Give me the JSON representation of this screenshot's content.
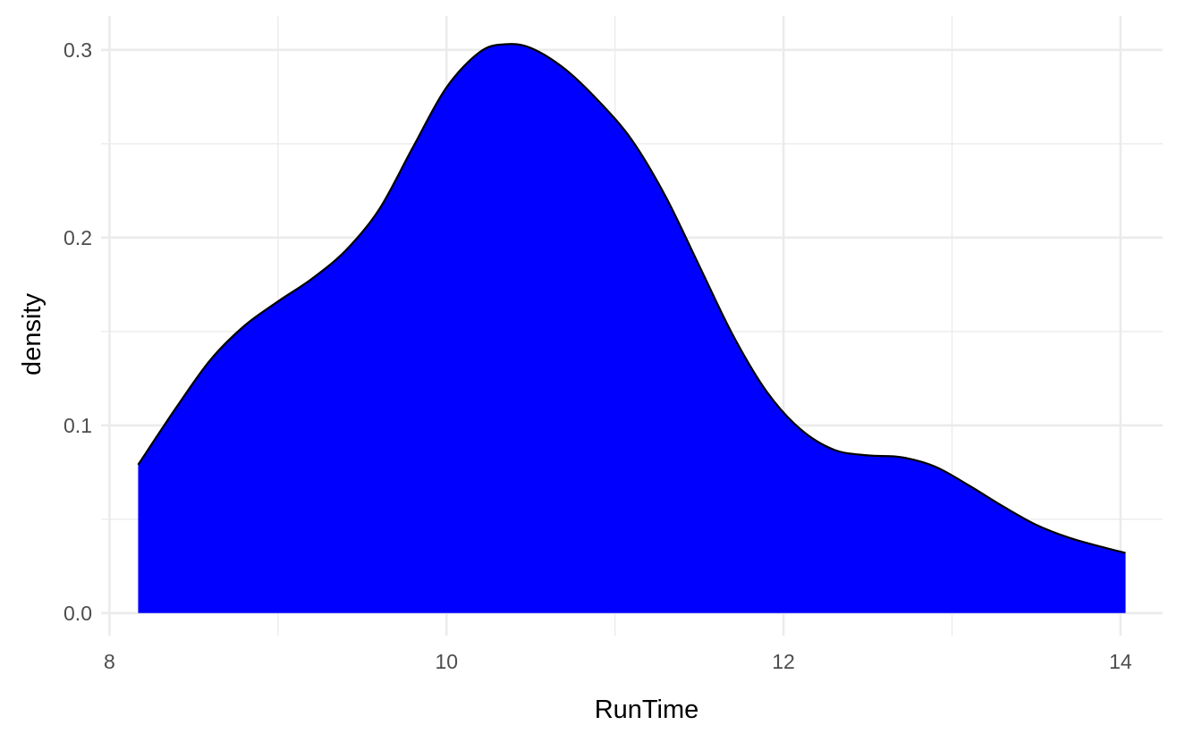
{
  "chart_data": {
    "type": "area",
    "subtype": "density",
    "title": "",
    "xlabel": "RunTime",
    "ylabel": "density",
    "xlim": [
      7.95,
      14.25
    ],
    "ylim": [
      -0.012,
      0.318
    ],
    "x_ticks": [
      {
        "value": 8,
        "label": "8"
      },
      {
        "value": 10,
        "label": "10"
      },
      {
        "value": 12,
        "label": "12"
      },
      {
        "value": 14,
        "label": "14"
      }
    ],
    "x_minor": [
      9,
      11,
      13
    ],
    "y_ticks": [
      {
        "value": 0.0,
        "label": "0.0"
      },
      {
        "value": 0.1,
        "label": "0.1"
      },
      {
        "value": 0.2,
        "label": "0.2"
      },
      {
        "value": 0.3,
        "label": "0.3"
      }
    ],
    "y_minor": [
      0.05,
      0.15,
      0.25
    ],
    "grid": true,
    "legend": "none",
    "fill_color": "#0000ff",
    "line_color": "#000000",
    "series": [
      {
        "x": [
          8.17,
          8.4,
          8.6,
          8.8,
          9.0,
          9.2,
          9.4,
          9.6,
          9.8,
          10.0,
          10.2,
          10.35,
          10.5,
          10.7,
          10.9,
          11.1,
          11.3,
          11.5,
          11.7,
          11.9,
          12.1,
          12.3,
          12.5,
          12.7,
          12.9,
          13.1,
          13.3,
          13.5,
          13.7,
          13.9,
          14.03
        ],
        "y": [
          0.079,
          0.11,
          0.135,
          0.153,
          0.166,
          0.178,
          0.193,
          0.215,
          0.248,
          0.28,
          0.299,
          0.303,
          0.301,
          0.29,
          0.273,
          0.252,
          0.222,
          0.185,
          0.148,
          0.118,
          0.098,
          0.087,
          0.084,
          0.083,
          0.078,
          0.068,
          0.057,
          0.047,
          0.04,
          0.035,
          0.032
        ]
      }
    ]
  }
}
